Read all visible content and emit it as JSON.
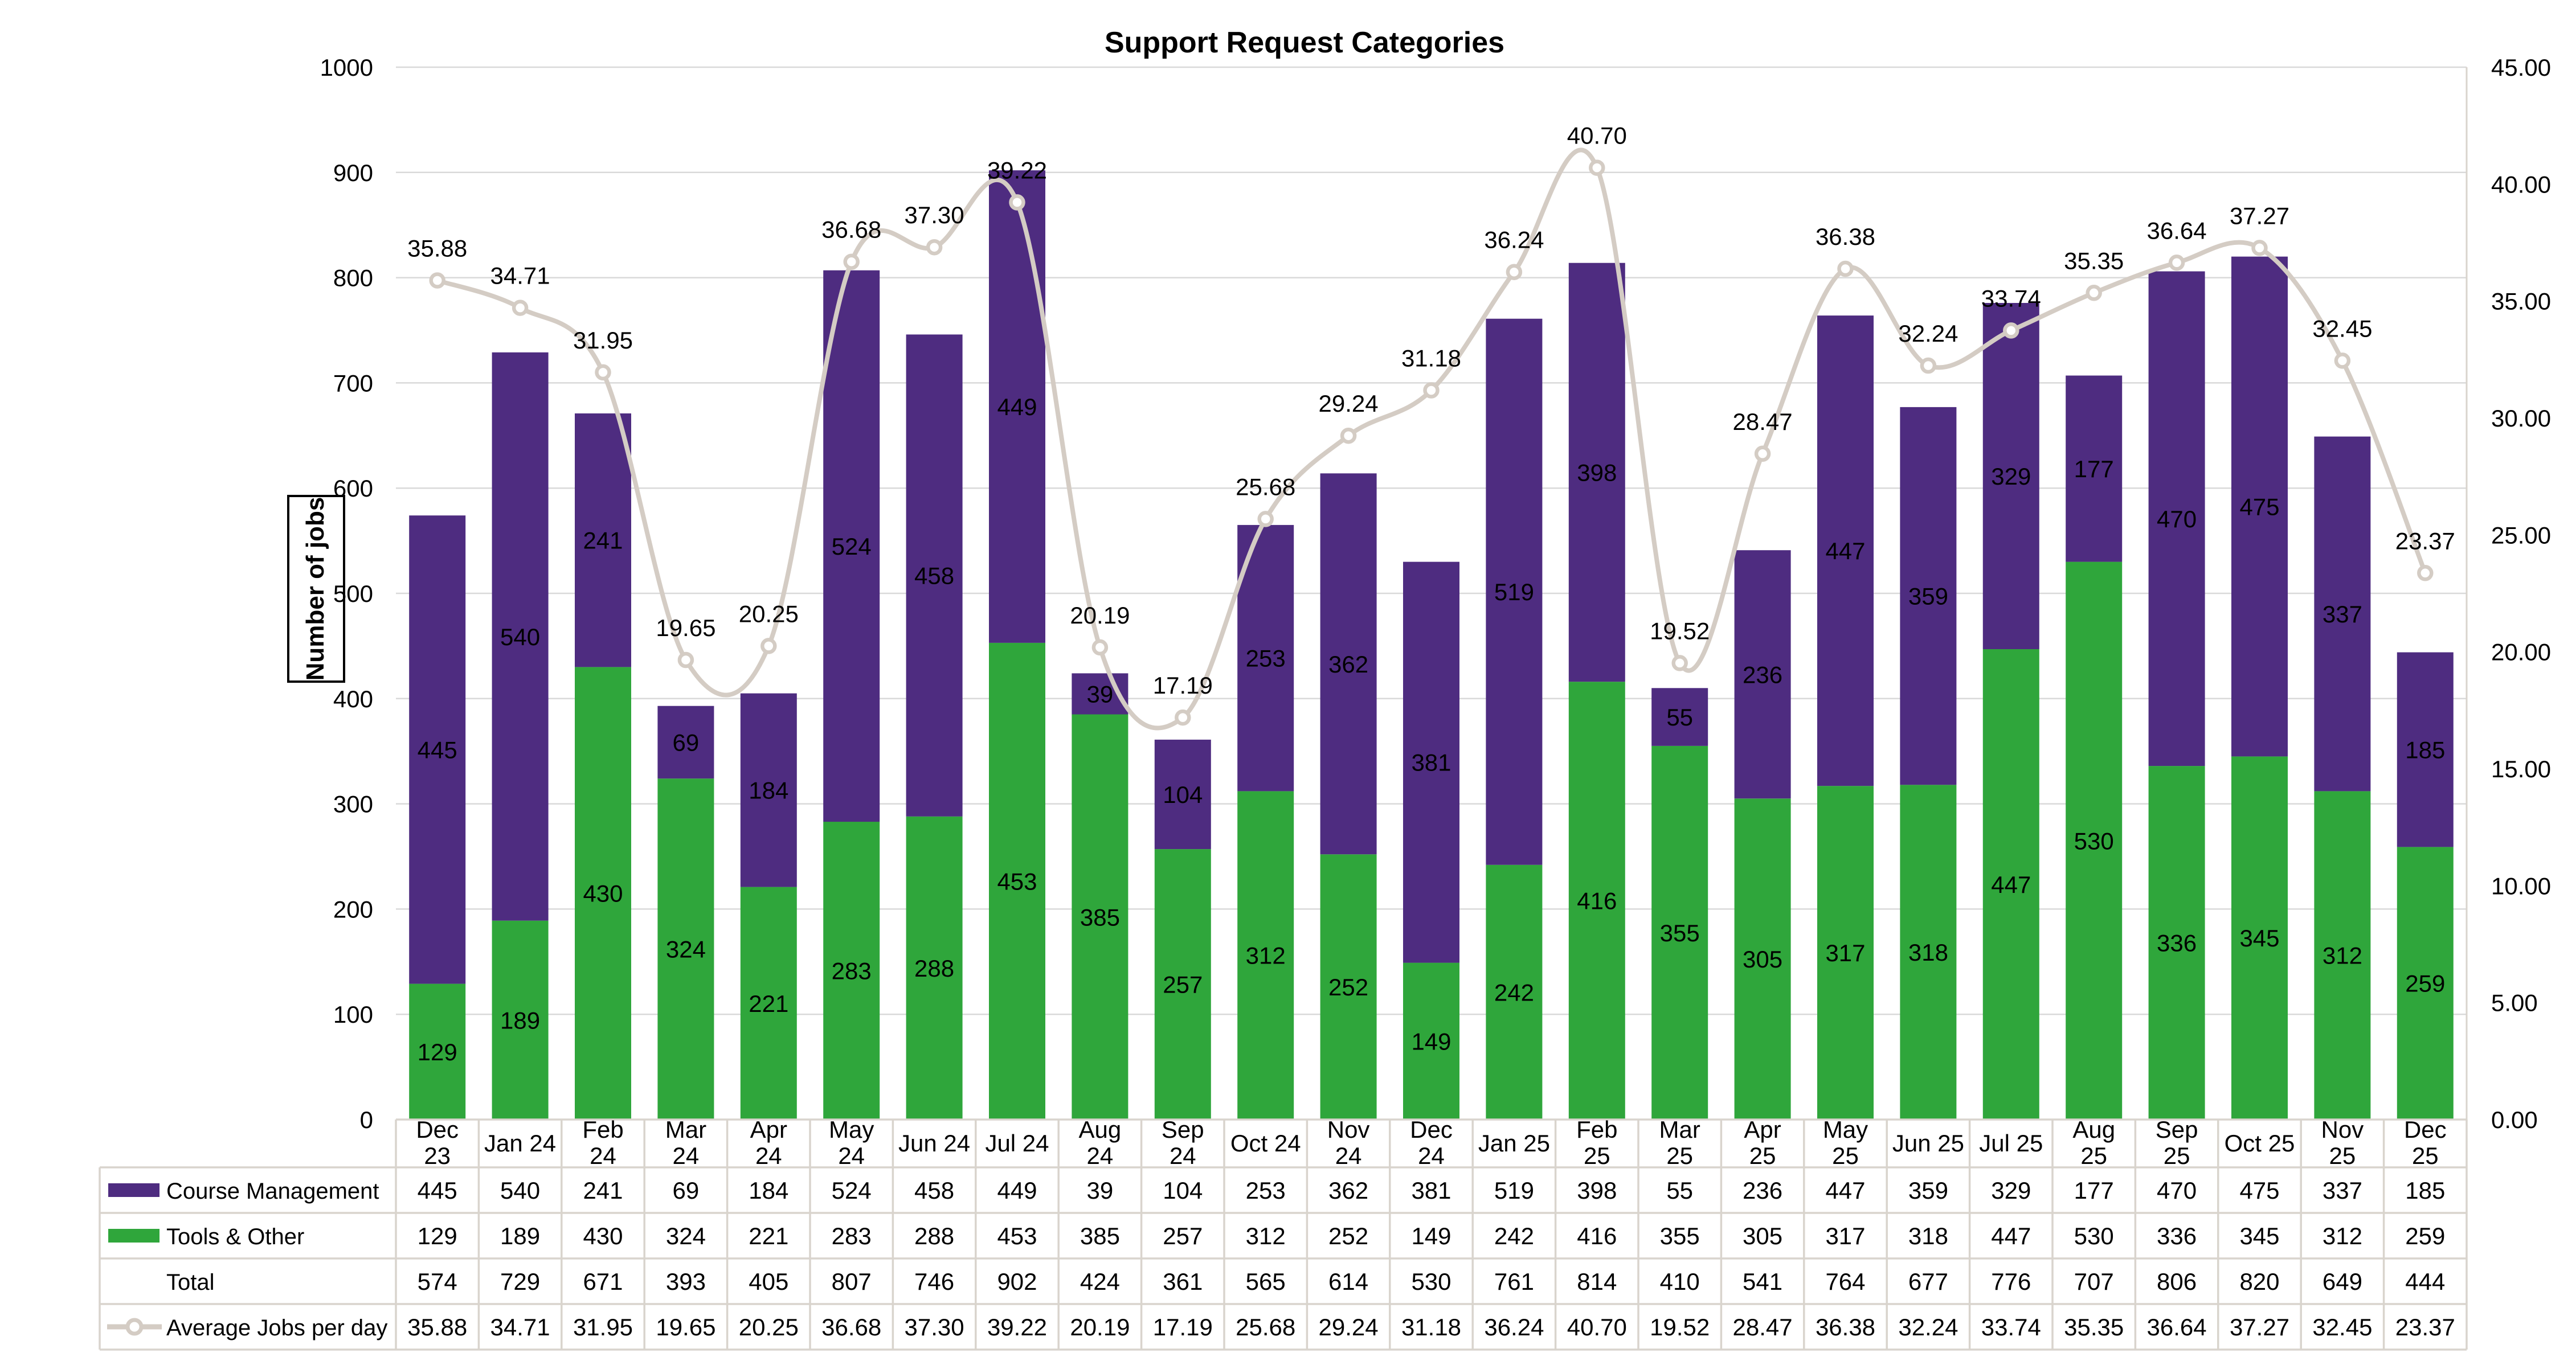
{
  "title": "Support Request Categories",
  "y_axis_title": "Number of jobs",
  "colors": {
    "course": "#4E2C80",
    "tools": "#2FA63B",
    "line": "#D4CCC4",
    "gridline": "#D9D9D9",
    "table_border": "#D9D4CD",
    "bar_label": "#FFFFFF",
    "line_label": "#000000",
    "axis_text": "#000000"
  },
  "left_axis": {
    "ticks": [
      "0",
      "100",
      "200",
      "300",
      "400",
      "500",
      "600",
      "700",
      "800",
      "900",
      "1000"
    ],
    "min": 0,
    "max": 1000,
    "step": 100
  },
  "right_axis": {
    "ticks": [
      "0.00",
      "5.00",
      "10.00",
      "15.00",
      "20.00",
      "25.00",
      "30.00",
      "35.00",
      "40.00",
      "45.00"
    ],
    "min": 0,
    "max": 45,
    "step": 5
  },
  "chart_data": {
    "type": "bar",
    "subtype": "stacked-bars-with-line-overlay",
    "title": "Support Request Categories",
    "ylabel": "Number of jobs",
    "ylim_left": [
      0,
      1000
    ],
    "ylim_right": [
      0,
      45
    ],
    "grid": true,
    "legend_position": "table-left-column",
    "categories": [
      "Dec 23",
      "Jan 24",
      "Feb 24",
      "Mar 24",
      "Apr 24",
      "May 24",
      "Jun 24",
      "Jul 24",
      "Aug 24",
      "Sep 24",
      "Oct 24",
      "Nov 24",
      "Dec 24",
      "Jan 25",
      "Feb 25",
      "Mar 25",
      "Apr 25",
      "May 25",
      "Jun 25",
      "Jul 25",
      "Aug 25",
      "Sep 25",
      "Oct 25",
      "Nov 25",
      "Dec 25"
    ],
    "category_label_lines": [
      [
        "Dec",
        "23"
      ],
      [
        "Jan 24"
      ],
      [
        "Feb",
        "24"
      ],
      [
        "Mar",
        "24"
      ],
      [
        "Apr",
        "24"
      ],
      [
        "May",
        "24"
      ],
      [
        "Jun 24"
      ],
      [
        "Jul 24"
      ],
      [
        "Aug",
        "24"
      ],
      [
        "Sep",
        "24"
      ],
      [
        "Oct 24"
      ],
      [
        "Nov",
        "24"
      ],
      [
        "Dec",
        "24"
      ],
      [
        "Jan 25"
      ],
      [
        "Feb",
        "25"
      ],
      [
        "Mar",
        "25"
      ],
      [
        "Apr",
        "25"
      ],
      [
        "May",
        "25"
      ],
      [
        "Jun 25"
      ],
      [
        "Jul 25"
      ],
      [
        "Aug",
        "25"
      ],
      [
        "Sep",
        "25"
      ],
      [
        "Oct 25"
      ],
      [
        "Nov",
        "25"
      ],
      [
        "Dec",
        "25"
      ]
    ],
    "series": [
      {
        "name": "Course Management",
        "role": "bar-top",
        "color": "#4E2C80",
        "values": [
          445,
          540,
          241,
          69,
          184,
          524,
          458,
          449,
          39,
          104,
          253,
          362,
          381,
          519,
          398,
          55,
          236,
          447,
          359,
          329,
          177,
          470,
          475,
          337,
          185
        ]
      },
      {
        "name": "Tools & Other",
        "role": "bar-bottom",
        "color": "#2FA63B",
        "values": [
          129,
          189,
          430,
          324,
          221,
          283,
          288,
          453,
          385,
          257,
          312,
          252,
          149,
          242,
          416,
          355,
          305,
          317,
          318,
          447,
          530,
          336,
          345,
          312,
          259
        ]
      },
      {
        "name": "Total",
        "role": "table-only",
        "values": [
          574,
          729,
          671,
          393,
          405,
          807,
          746,
          902,
          424,
          361,
          565,
          614,
          530,
          761,
          814,
          410,
          541,
          764,
          677,
          776,
          707,
          806,
          820,
          649,
          444
        ]
      },
      {
        "name": "Average Jobs per day",
        "role": "line",
        "color": "#D4CCC4",
        "decimals": 2,
        "values": [
          35.88,
          34.71,
          31.95,
          19.65,
          20.25,
          36.68,
          37.3,
          39.22,
          20.19,
          17.19,
          25.68,
          29.24,
          31.18,
          36.24,
          40.7,
          19.52,
          28.47,
          36.38,
          32.24,
          33.74,
          35.35,
          36.64,
          37.27,
          32.45,
          23.37
        ]
      }
    ]
  }
}
